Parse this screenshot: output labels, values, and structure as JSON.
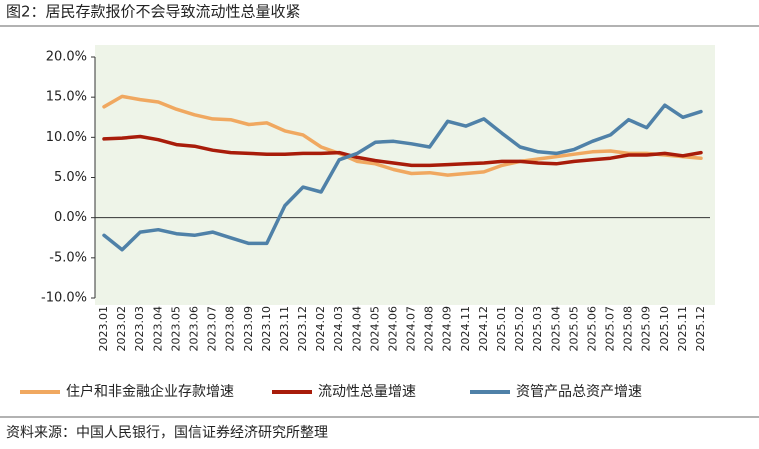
{
  "chart_data": {
    "type": "line",
    "title": "图2：居民存款报价不会导致流动性总量收紧",
    "source": "资料来源：中国人民银行，国信证券经济研究所整理",
    "categories": [
      "2023.01",
      "2023.02",
      "2023.03",
      "2023.04",
      "2023.05",
      "2023.06",
      "2023.07",
      "2023.08",
      "2023.09",
      "2023.10",
      "2023.11",
      "2023.12",
      "2024.02",
      "2024.03",
      "2024.04",
      "2024.05",
      "2024.06",
      "2024.07",
      "2024.08",
      "2024.09",
      "2024.11",
      "2024.12",
      "2025.01",
      "2025.02",
      "2025.03",
      "2025.04",
      "2025.05",
      "2025.06",
      "2025.07",
      "2025.08",
      "2025.09",
      "2025.10",
      "2025.11",
      "2025.12"
    ],
    "series": [
      {
        "name": "住户和非金融企业存款增速",
        "color": "#f0a860",
        "values": [
          13.8,
          15.1,
          14.7,
          14.4,
          13.5,
          12.8,
          12.3,
          12.2,
          11.6,
          11.8,
          10.8,
          10.3,
          8.8,
          8.0,
          7.0,
          6.7,
          6.0,
          5.5,
          5.6,
          5.3,
          5.5,
          5.7,
          6.5,
          7.0,
          7.3,
          7.6,
          7.9,
          8.2,
          8.3,
          8.0,
          8.0,
          7.8,
          7.6,
          7.4
        ]
      },
      {
        "name": "流动性总量增速",
        "color": "#a81c0a",
        "values": [
          9.8,
          9.9,
          10.1,
          9.7,
          9.1,
          8.9,
          8.4,
          8.1,
          8.0,
          7.9,
          7.9,
          8.0,
          8.0,
          8.1,
          7.5,
          7.1,
          6.8,
          6.5,
          6.5,
          6.6,
          6.7,
          6.8,
          7.0,
          7.0,
          6.8,
          6.7,
          7.0,
          7.2,
          7.4,
          7.8,
          7.8,
          8.0,
          7.7,
          8.1
        ]
      },
      {
        "name": "资管产品总资产增速",
        "color": "#4f81a8",
        "values": [
          -2.2,
          -4.0,
          -1.8,
          -1.5,
          -2.0,
          -2.2,
          -1.8,
          -2.5,
          -3.2,
          -3.2,
          1.5,
          3.8,
          3.2,
          7.2,
          8.0,
          9.4,
          9.5,
          9.2,
          8.8,
          12.0,
          11.4,
          12.3,
          10.5,
          8.8,
          8.2,
          8.0,
          8.5,
          9.5,
          10.3,
          12.2,
          11.2,
          14.0,
          12.5,
          13.2
        ]
      }
    ],
    "ylim": [
      -10,
      20
    ],
    "yticks": [
      {
        "value": -10,
        "label": "-10.0%"
      },
      {
        "value": -5,
        "label": "-5.0%"
      },
      {
        "value": 0,
        "label": "0.0%"
      },
      {
        "value": 5,
        "label": "5.0%"
      },
      {
        "value": 10,
        "label": "10.0%"
      },
      {
        "value": 15,
        "label": "15.0%"
      },
      {
        "value": 20,
        "label": "20.0%"
      }
    ]
  }
}
